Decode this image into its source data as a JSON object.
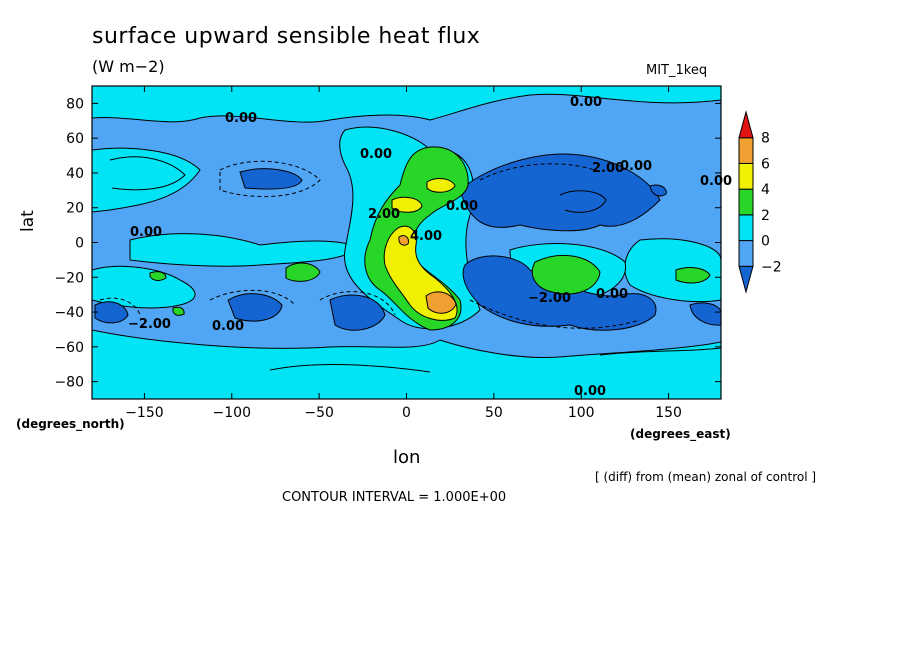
{
  "chart_data": {
    "type": "contour",
    "title": "surface upward sensible heat flux",
    "units": "(W m−2)",
    "run_label": "MIT_1keq",
    "xlabel": "lon",
    "ylabel": "lat",
    "x_sublabel": "(degrees_east)",
    "y_sublabel": "(degrees_north)",
    "note": "[ (diff) from (mean) zonal of control ]",
    "contour_interval": "CONTOUR INTERVAL = 1.000E+00",
    "xlim": [
      -180,
      180
    ],
    "ylim": [
      -90,
      90
    ],
    "x_ticks": [
      -150,
      -100,
      -50,
      0,
      50,
      100,
      150
    ],
    "y_ticks": [
      -80,
      -60,
      -40,
      -20,
      0,
      20,
      40,
      60,
      80
    ],
    "x_tick_labels": [
      "−150",
      "−100",
      "−50",
      "0",
      "50",
      "100",
      "150"
    ],
    "y_tick_labels": [
      "−80",
      "−60",
      "−40",
      "−20",
      "0",
      "20",
      "40",
      "60",
      "80"
    ],
    "colorbar": {
      "levels": [
        -2,
        0,
        2,
        4,
        6,
        8
      ],
      "labels": [
        "−2",
        "0",
        "2",
        "4",
        "6",
        "8"
      ],
      "colors": [
        "#1464d2",
        "#50a5f5",
        "#00e4f6",
        "#28d628",
        "#f0f000",
        "#f0a030",
        "#e11414"
      ]
    },
    "contour_labels": [
      "0.00",
      "0.00",
      "0.00",
      "0.00",
      "0.00",
      "0.00",
      "0.00",
      "0.00",
      "0.00",
      "0.00",
      "2.00",
      "2.00",
      "−2.00",
      "−2.00",
      "4.00"
    ],
    "grid": false
  }
}
